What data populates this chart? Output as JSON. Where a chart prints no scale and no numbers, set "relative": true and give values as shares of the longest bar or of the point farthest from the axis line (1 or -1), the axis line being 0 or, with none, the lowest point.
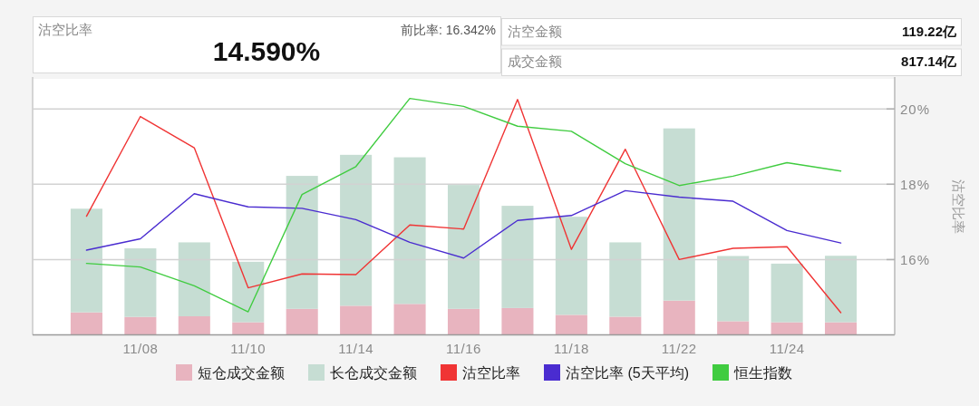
{
  "chart_data": [
    {
      "type": "other",
      "title": "沽空比率",
      "annotations": [
        "14.590%",
        "前比率: 16.342%"
      ]
    },
    {
      "type": "other",
      "annotations": [
        "沽空金额",
        "119.22亿",
        "成交金额",
        "817.14亿"
      ]
    },
    {
      "type": "bar",
      "stacked": true,
      "relative": true,
      "tick_labels": "x",
      "legend": "bottom",
      "categories": [
        null,
        "11/08",
        null,
        "11/10",
        null,
        "11/14",
        null,
        "11/16",
        null,
        "11/18",
        null,
        "11/22",
        null,
        "11/24",
        null
      ],
      "series": [
        {
          "name": "短仓成交金额",
          "color": "#e8b4bf",
          "values": [
            0.109,
            0.087,
            0.09,
            0.061,
            0.126,
            0.141,
            0.15,
            0.126,
            0.13,
            0.097,
            0.088,
            0.166,
            0.066,
            0.061,
            0.061
          ]
        },
        {
          "name": "长仓成交金额",
          "color": "#c6ddd3",
          "values": [
            0.502,
            0.332,
            0.358,
            0.293,
            0.644,
            0.731,
            0.71,
            0.6,
            0.495,
            0.475,
            0.36,
            0.834,
            0.316,
            0.284,
            0.322
          ]
        }
      ]
    },
    {
      "type": "line",
      "tick_labels": "y",
      "legend": "bottom",
      "grid": "y",
      "categories": [
        null,
        null,
        null,
        null,
        null,
        null,
        null,
        null,
        null,
        null,
        null,
        null,
        null,
        null,
        null
      ],
      "series": [
        {
          "name": "沽空比率",
          "color": "#f03434",
          "values": [
            17.15,
            19.8,
            18.97,
            15.25,
            15.62,
            15.6,
            16.92,
            16.81,
            20.25,
            16.27,
            18.93,
            16.0,
            16.3,
            16.34,
            14.59
          ]
        },
        {
          "name": "沽空比率 (5天平均)",
          "color": "#4a2cd0",
          "values": [
            16.25,
            16.55,
            17.75,
            17.4,
            17.36,
            17.06,
            16.46,
            16.04,
            17.04,
            17.17,
            17.83,
            17.66,
            17.55,
            16.77,
            16.44
          ]
        }
      ],
      "ylabel": "沽空比率",
      "ylim": [
        14,
        20.8
      ],
      "yticks": [
        {
          "value": 16,
          "label": "16%"
        },
        {
          "value": 18,
          "label": "18%"
        },
        {
          "value": 20,
          "label": "20%"
        }
      ]
    },
    {
      "type": "line",
      "relative": true,
      "tick_labels": false,
      "legend": "bottom",
      "categories": [
        null,
        null,
        null,
        null,
        null,
        null,
        null,
        null,
        null,
        null,
        null,
        null,
        null,
        null,
        null
      ],
      "series": [
        {
          "name": "恒生指数",
          "color": "#40cc40",
          "values": [
            0.227,
            0.21,
            0.122,
            0,
            0.55,
            0.681,
            1,
            0.963,
            0.87,
            0.846,
            0.694,
            0.592,
            0.636,
            0.699,
            0.66
          ]
        }
      ]
    }
  ]
}
